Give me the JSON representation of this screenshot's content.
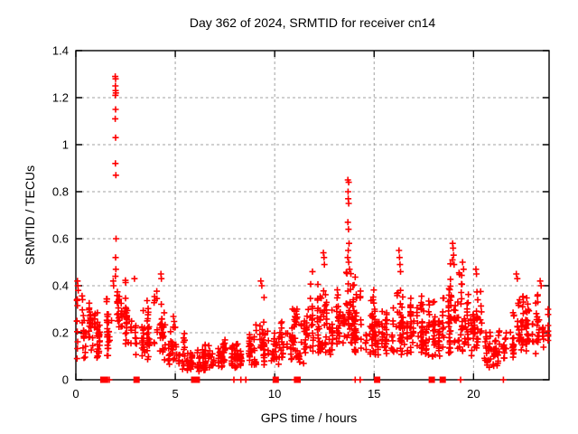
{
  "chart_data": {
    "type": "scatter",
    "title": "Day 362 of 2024, SRMTID for receiver cn14",
    "xlabel": "GPS time / hours",
    "ylabel": "SRMTID / TECUs",
    "xlim": [
      0,
      23.8
    ],
    "ylim": [
      0,
      1.4
    ],
    "xticks": [
      0,
      5,
      10,
      15,
      20
    ],
    "xtick_labels": [
      "0",
      "5",
      "10",
      "15",
      "20"
    ],
    "yticks": [
      0,
      0.2,
      0.4,
      0.6,
      0.8,
      1.0,
      1.2,
      1.4
    ],
    "ytick_labels": [
      "0",
      "0.2",
      "0.4",
      "0.6",
      "0.8",
      "1",
      "1.2",
      "1.4"
    ],
    "grid": true,
    "legend": "none",
    "marker": "plus",
    "marker_color": "#ff0000",
    "grid_color": "#a0a0a0",
    "axis_color": "#000000",
    "background_color": "#ffffff",
    "notable_points": [
      [
        0.08,
        0.42
      ],
      [
        0.1,
        0.4
      ],
      [
        0.12,
        0.38
      ],
      [
        1.88,
        0.42
      ],
      [
        1.9,
        0.4
      ],
      [
        1.98,
        1.29
      ],
      [
        2.0,
        1.28
      ],
      [
        1.99,
        1.25
      ],
      [
        2.0,
        1.23
      ],
      [
        2.01,
        1.22
      ],
      [
        1.99,
        1.21
      ],
      [
        2.0,
        1.15
      ],
      [
        1.98,
        1.11
      ],
      [
        2.0,
        1.03
      ],
      [
        1.99,
        0.92
      ],
      [
        2.01,
        0.87
      ],
      [
        2.02,
        0.6
      ],
      [
        2.0,
        0.52
      ],
      [
        2.01,
        0.47
      ],
      [
        1.99,
        0.44
      ],
      [
        2.95,
        0.43
      ],
      [
        4.28,
        0.45
      ],
      [
        4.3,
        0.43
      ],
      [
        9.3,
        0.42
      ],
      [
        9.35,
        0.4
      ],
      [
        11.9,
        0.46
      ],
      [
        12.45,
        0.54
      ],
      [
        12.48,
        0.52
      ],
      [
        12.5,
        0.49
      ],
      [
        13.68,
        0.85
      ],
      [
        13.72,
        0.84
      ],
      [
        13.69,
        0.8
      ],
      [
        13.7,
        0.77
      ],
      [
        13.72,
        0.75
      ],
      [
        13.68,
        0.67
      ],
      [
        13.71,
        0.64
      ],
      [
        13.74,
        0.58
      ],
      [
        13.7,
        0.55
      ],
      [
        13.67,
        0.52
      ],
      [
        13.72,
        0.5
      ],
      [
        13.76,
        0.47
      ],
      [
        16.25,
        0.55
      ],
      [
        16.28,
        0.52
      ],
      [
        16.3,
        0.49
      ],
      [
        16.33,
        0.46
      ],
      [
        18.95,
        0.58
      ],
      [
        18.97,
        0.56
      ],
      [
        19.0,
        0.53
      ],
      [
        18.94,
        0.51
      ],
      [
        19.02,
        0.49
      ],
      [
        19.45,
        0.5
      ],
      [
        19.5,
        0.47
      ],
      [
        20.12,
        0.47
      ],
      [
        20.15,
        0.45
      ],
      [
        22.15,
        0.45
      ],
      [
        22.2,
        0.43
      ],
      [
        23.35,
        0.42
      ],
      [
        23.4,
        0.4
      ]
    ],
    "scatter_density_bins": [
      [
        0.0,
        0.08,
        0.4,
        30
      ],
      [
        0.5,
        0.1,
        0.38,
        28
      ],
      [
        1.0,
        0.08,
        0.34,
        26
      ],
      [
        1.5,
        0.1,
        0.4,
        28
      ],
      [
        2.0,
        0.22,
        0.46,
        32
      ],
      [
        2.5,
        0.14,
        0.4,
        28
      ],
      [
        3.0,
        0.1,
        0.36,
        26
      ],
      [
        3.5,
        0.08,
        0.38,
        28
      ],
      [
        4.0,
        0.08,
        0.44,
        28
      ],
      [
        4.5,
        0.06,
        0.3,
        24
      ],
      [
        5.0,
        0.04,
        0.22,
        22
      ],
      [
        5.5,
        0.03,
        0.18,
        22
      ],
      [
        6.0,
        0.03,
        0.16,
        24
      ],
      [
        6.5,
        0.04,
        0.18,
        24
      ],
      [
        7.0,
        0.05,
        0.2,
        26
      ],
      [
        7.5,
        0.05,
        0.18,
        26
      ],
      [
        8.0,
        0.05,
        0.18,
        26
      ],
      [
        8.5,
        0.06,
        0.2,
        26
      ],
      [
        9.0,
        0.05,
        0.38,
        28
      ],
      [
        9.5,
        0.06,
        0.22,
        26
      ],
      [
        10.0,
        0.05,
        0.26,
        28
      ],
      [
        10.5,
        0.08,
        0.35,
        30
      ],
      [
        11.0,
        0.06,
        0.32,
        30
      ],
      [
        11.5,
        0.1,
        0.44,
        32
      ],
      [
        12.0,
        0.1,
        0.5,
        34
      ],
      [
        12.5,
        0.1,
        0.4,
        34
      ],
      [
        13.0,
        0.12,
        0.48,
        36
      ],
      [
        13.5,
        0.15,
        0.5,
        38
      ],
      [
        14.0,
        0.1,
        0.45,
        36
      ],
      [
        14.5,
        0.1,
        0.42,
        34
      ],
      [
        15.0,
        0.1,
        0.4,
        34
      ],
      [
        15.5,
        0.1,
        0.38,
        34
      ],
      [
        16.0,
        0.1,
        0.5,
        36
      ],
      [
        16.5,
        0.1,
        0.4,
        34
      ],
      [
        17.0,
        0.1,
        0.44,
        34
      ],
      [
        17.5,
        0.08,
        0.4,
        34
      ],
      [
        18.0,
        0.1,
        0.38,
        34
      ],
      [
        18.5,
        0.1,
        0.54,
        36
      ],
      [
        19.0,
        0.1,
        0.48,
        34
      ],
      [
        19.5,
        0.1,
        0.44,
        34
      ],
      [
        20.0,
        0.12,
        0.45,
        32
      ],
      [
        20.5,
        0.05,
        0.28,
        26
      ],
      [
        21.0,
        0.05,
        0.26,
        26
      ],
      [
        21.5,
        0.08,
        0.34,
        30
      ],
      [
        22.0,
        0.08,
        0.44,
        32
      ],
      [
        22.5,
        0.12,
        0.36,
        32
      ],
      [
        23.0,
        0.1,
        0.4,
        28
      ],
      [
        23.5,
        0.15,
        0.34,
        10
      ]
    ],
    "zero_value_squares_hours": [
      1.38,
      1.47,
      3.05,
      5.95,
      6.08,
      10.05,
      11.15,
      15.15,
      17.9,
      18.45
    ],
    "zero_value_plus_hours": [
      1.68,
      7.95,
      8.3,
      8.55,
      11.0,
      14.05,
      14.3,
      19.35,
      21.5
    ],
    "seed": 1362024
  }
}
